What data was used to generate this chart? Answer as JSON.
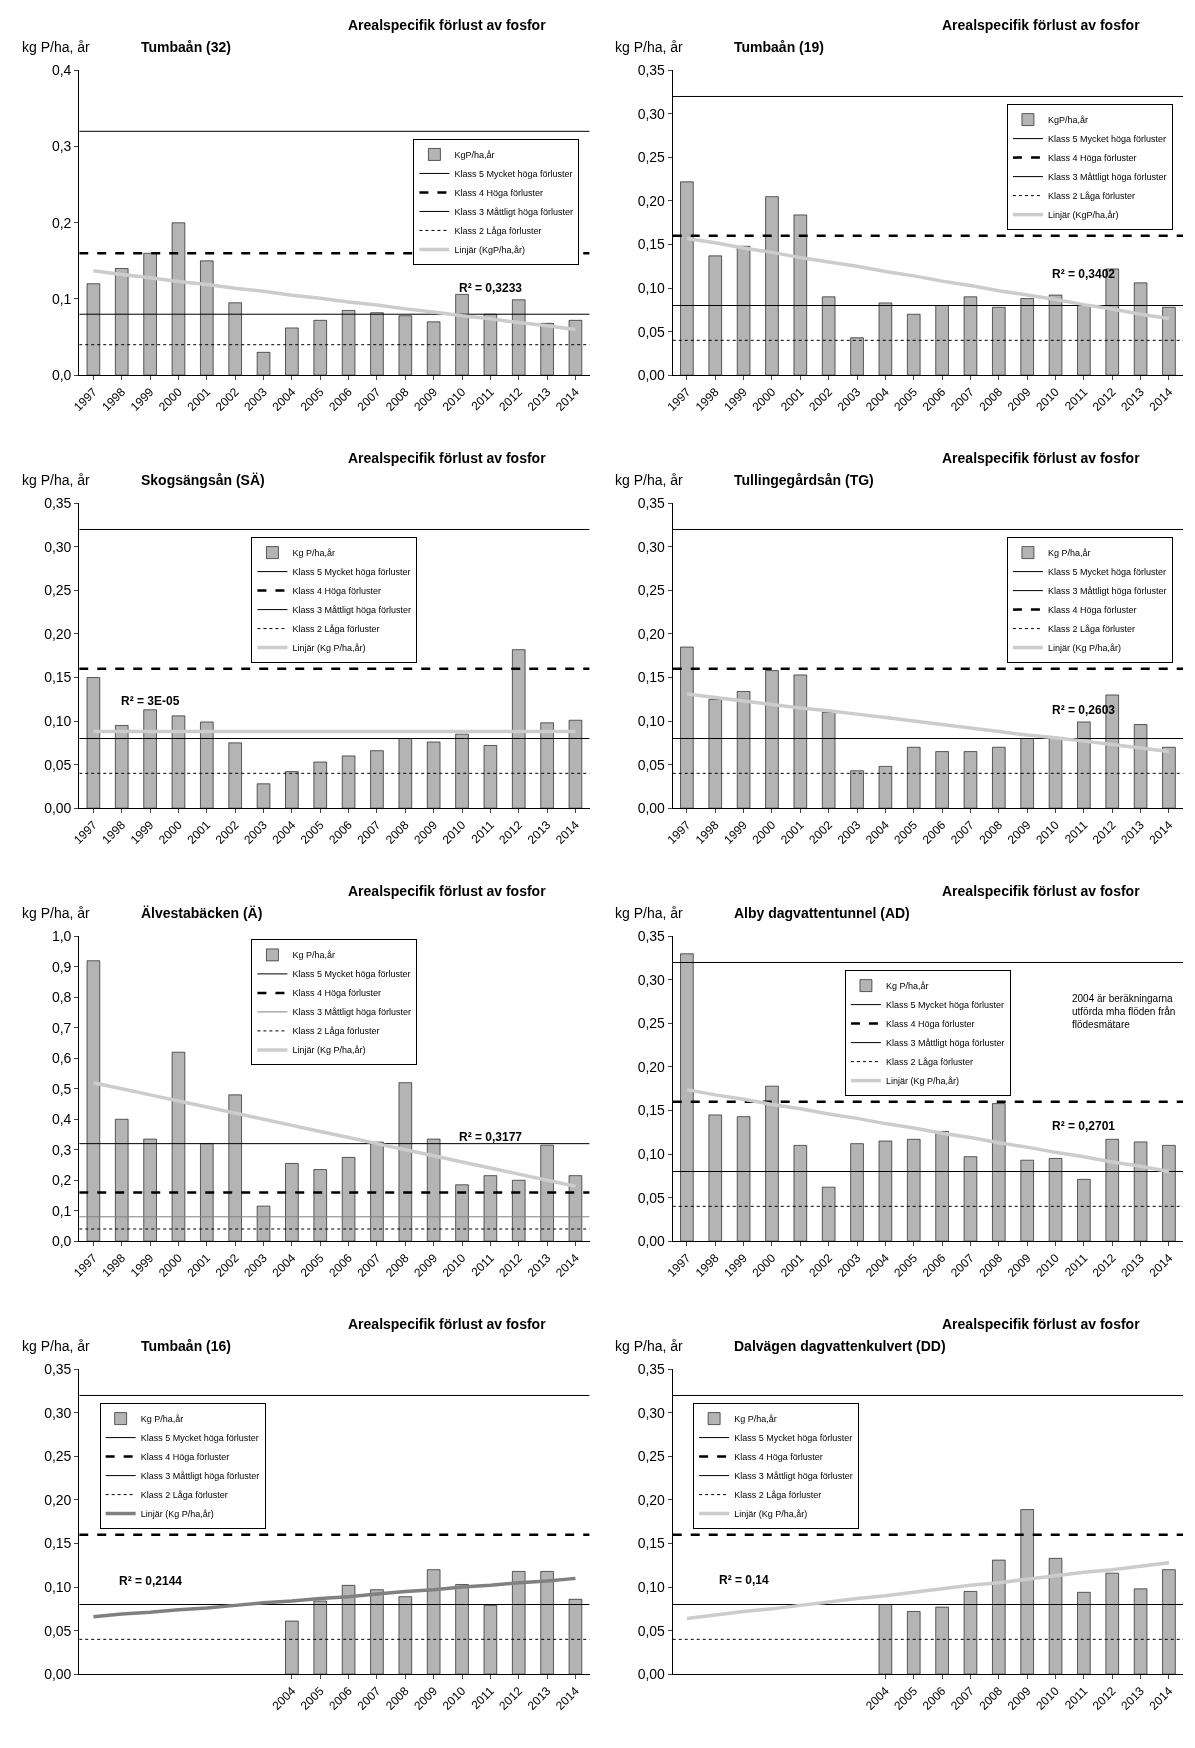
{
  "chart_data": [
    {
      "type": "bar",
      "title": "Arealspecifik förlust av fosfor",
      "subtitle": "Tumbaån (32)",
      "ylabel": "kg P/ha, år",
      "legend": "top right",
      "categories": [
        "1997",
        "1998",
        "1999",
        "2000",
        "2001",
        "2002",
        "2003",
        "2004",
        "2005",
        "2006",
        "2007",
        "2008",
        "2009",
        "2010",
        "2011",
        "2012",
        "2013",
        "2014"
      ],
      "ylim": [
        0,
        0.4
      ],
      "yticks": [
        {
          "value": 0,
          "label": "0,0"
        },
        {
          "value": 0.1,
          "label": "0,1"
        },
        {
          "value": 0.2,
          "label": "0,2"
        },
        {
          "value": 0.3,
          "label": "0,3"
        },
        {
          "value": 0.4,
          "label": "0,4"
        }
      ],
      "series": [
        {
          "name": "KgP/ha,år",
          "color": "#b4b4b4",
          "values": [
            0.12,
            0.14,
            0.16,
            0.2,
            0.15,
            0.095,
            0.03,
            0.062,
            0.072,
            0.085,
            0.082,
            0.078,
            0.07,
            0.106,
            0.08,
            0.099,
            0.068,
            0.072
          ]
        },
        {
          "type": "line",
          "name": "Linjär (KgP/ha,år)",
          "color": "#cccccc",
          "values": [
            0.137,
            0.132,
            0.128,
            0.123,
            0.119,
            0.114,
            0.11,
            0.105,
            0.101,
            0.096,
            0.092,
            0.087,
            0.083,
            0.078,
            0.074,
            0.069,
            0.065,
            0.06
          ]
        }
      ],
      "ref_lines": [
        {
          "axis": "y",
          "value": 0.32,
          "label": "Klass 5 Mycket höga förluster",
          "color": "#000000",
          "line_style": "solid"
        },
        {
          "axis": "y",
          "value": 0.16,
          "label": "Klass 4 Höga förluster",
          "color": "#000000",
          "line_style": "dashed"
        },
        {
          "axis": "y",
          "value": 0.08,
          "label": "Klass 3 Måttligt höga förluster",
          "color": "#000000",
          "line_style": "solid"
        },
        {
          "axis": "y",
          "value": 0.04,
          "label": "Klass 2 Låga förluster",
          "color": "#000000",
          "line_style": "dotted"
        }
      ],
      "annotations": [
        "R² = 0,3233"
      ]
    },
    {
      "type": "bar",
      "title": "Arealspecifik förlust av fosfor",
      "subtitle": "Tumbaån (19)",
      "ylabel": "kg P/ha, år",
      "legend": "top right",
      "categories": [
        "1997",
        "1998",
        "1999",
        "2000",
        "2001",
        "2002",
        "2003",
        "2004",
        "2005",
        "2006",
        "2007",
        "2008",
        "2009",
        "2010",
        "2011",
        "2012",
        "2013",
        "2014"
      ],
      "ylim": [
        0,
        0.35
      ],
      "yticks": [
        {
          "value": 0,
          "label": "0,00"
        },
        {
          "value": 0.05,
          "label": "0,05"
        },
        {
          "value": 0.1,
          "label": "0,10"
        },
        {
          "value": 0.15,
          "label": "0,15"
        },
        {
          "value": 0.2,
          "label": "0,20"
        },
        {
          "value": 0.25,
          "label": "0,25"
        },
        {
          "value": 0.3,
          "label": "0,30"
        },
        {
          "value": 0.35,
          "label": "0,35"
        }
      ],
      "series": [
        {
          "name": "KgP/ha,år",
          "color": "#b4b4b4",
          "values": [
            0.222,
            0.137,
            0.148,
            0.205,
            0.184,
            0.09,
            0.043,
            0.083,
            0.07,
            0.08,
            0.09,
            0.078,
            0.088,
            0.092,
            0.08,
            0.122,
            0.106,
            0.078
          ]
        },
        {
          "type": "line",
          "name": "Linjär (KgP/ha,år)",
          "color": "#cccccc",
          "values": [
            0.157,
            0.152,
            0.146,
            0.141,
            0.135,
            0.13,
            0.125,
            0.119,
            0.114,
            0.108,
            0.103,
            0.097,
            0.092,
            0.087,
            0.081,
            0.076,
            0.07,
            0.065
          ]
        }
      ],
      "ref_lines": [
        {
          "axis": "y",
          "value": 0.32,
          "label": "Klass 5 Mycket höga förluster",
          "color": "#000000",
          "line_style": "solid"
        },
        {
          "axis": "y",
          "value": 0.16,
          "label": "Klass 4 Höga förluster",
          "color": "#000000",
          "line_style": "dashed"
        },
        {
          "axis": "y",
          "value": 0.08,
          "label": "Klass 3 Måttligt höga förluster",
          "color": "#000000",
          "line_style": "solid"
        },
        {
          "axis": "y",
          "value": 0.04,
          "label": "Klass 2 Låga förluster",
          "color": "#000000",
          "line_style": "dotted"
        }
      ],
      "annotations": [
        "R² = 0,3402"
      ]
    },
    {
      "type": "bar",
      "title": "Arealspecifik förlust av fosfor",
      "subtitle": "Skogsängsån (SÄ)",
      "ylabel": "kg P/ha, år",
      "legend": "top",
      "categories": [
        "1997",
        "1998",
        "1999",
        "2000",
        "2001",
        "2002",
        "2003",
        "2004",
        "2005",
        "2006",
        "2007",
        "2008",
        "2009",
        "2010",
        "2011",
        "2012",
        "2013",
        "2014"
      ],
      "ylim": [
        0,
        0.35
      ],
      "yticks": [
        {
          "value": 0,
          "label": "0,00"
        },
        {
          "value": 0.05,
          "label": "0,05"
        },
        {
          "value": 0.1,
          "label": "0,10"
        },
        {
          "value": 0.15,
          "label": "0,15"
        },
        {
          "value": 0.2,
          "label": "0,20"
        },
        {
          "value": 0.25,
          "label": "0,25"
        },
        {
          "value": 0.3,
          "label": "0,30"
        },
        {
          "value": 0.35,
          "label": "0,35"
        }
      ],
      "series": [
        {
          "name": "Kg P/ha,år",
          "color": "#b4b4b4",
          "values": [
            0.15,
            0.095,
            0.113,
            0.106,
            0.099,
            0.075,
            0.028,
            0.042,
            0.053,
            0.06,
            0.066,
            0.08,
            0.076,
            0.085,
            0.072,
            0.182,
            0.098,
            0.101
          ]
        },
        {
          "type": "line",
          "name": "Linjär (Kg P/ha,år)",
          "color": "#cccccc",
          "values": [
            0.088,
            0.088,
            0.088,
            0.088,
            0.088,
            0.088,
            0.088,
            0.088,
            0.088,
            0.088,
            0.088,
            0.088,
            0.088,
            0.088,
            0.088,
            0.088,
            0.088,
            0.088
          ]
        }
      ],
      "ref_lines": [
        {
          "axis": "y",
          "value": 0.32,
          "label": "Klass 5 Mycket höga förluster",
          "color": "#000000",
          "line_style": "solid"
        },
        {
          "axis": "y",
          "value": 0.16,
          "label": "Klass 4 Höga förluster",
          "color": "#000000",
          "line_style": "dashed"
        },
        {
          "axis": "y",
          "value": 0.08,
          "label": "Klass 3 Måttligt höga förluster",
          "color": "#000000",
          "line_style": "solid"
        },
        {
          "axis": "y",
          "value": 0.04,
          "label": "Klass 2 Låga förluster",
          "color": "#000000",
          "line_style": "dotted"
        }
      ],
      "annotations": [
        "R² = 3E-05"
      ]
    },
    {
      "type": "bar",
      "title": "Arealspecifik förlust av fosfor",
      "subtitle": "Tullingegårdsån (TG)",
      "ylabel": "kg P/ha, år",
      "legend": "top right",
      "categories": [
        "1997",
        "1998",
        "1999",
        "2000",
        "2001",
        "2002",
        "2003",
        "2004",
        "2005",
        "2006",
        "2007",
        "2008",
        "2009",
        "2010",
        "2011",
        "2012",
        "2013",
        "2014"
      ],
      "ylim": [
        0,
        0.35
      ],
      "yticks": [
        {
          "value": 0,
          "label": "0,00"
        },
        {
          "value": 0.05,
          "label": "0,05"
        },
        {
          "value": 0.1,
          "label": "0,10"
        },
        {
          "value": 0.15,
          "label": "0,15"
        },
        {
          "value": 0.2,
          "label": "0,20"
        },
        {
          "value": 0.25,
          "label": "0,25"
        },
        {
          "value": 0.3,
          "label": "0,30"
        },
        {
          "value": 0.35,
          "label": "0,35"
        }
      ],
      "series": [
        {
          "name": "Kg P/ha,år",
          "color": "#b4b4b4",
          "values": [
            0.185,
            0.125,
            0.134,
            0.158,
            0.153,
            0.11,
            0.043,
            0.048,
            0.07,
            0.065,
            0.065,
            0.07,
            0.08,
            0.08,
            0.099,
            0.13,
            0.096,
            0.07
          ]
        },
        {
          "type": "line",
          "name": "Linjär (Kg P/ha,år)",
          "color": "#cccccc",
          "values": [
            0.131,
            0.127,
            0.123,
            0.119,
            0.115,
            0.112,
            0.108,
            0.104,
            0.1,
            0.096,
            0.092,
            0.088,
            0.084,
            0.081,
            0.077,
            0.073,
            0.069,
            0.065
          ]
        }
      ],
      "ref_lines": [
        {
          "axis": "y",
          "value": 0.32,
          "label": "Klass 5 Mycket höga förluster",
          "color": "#000000",
          "line_style": "solid"
        },
        {
          "axis": "y",
          "value": 0.08,
          "label": "Klass 3 Måttligt höga förluster",
          "color": "#000000",
          "line_style": "solid"
        },
        {
          "axis": "y",
          "value": 0.16,
          "label": "Klass 4 Höga förluster",
          "color": "#000000",
          "line_style": "dashed"
        },
        {
          "axis": "y",
          "value": 0.04,
          "label": "Klass 2 Låga förluster",
          "color": "#000000",
          "line_style": "dotted"
        }
      ],
      "annotations": [
        "R² = 0,2603"
      ]
    },
    {
      "type": "bar",
      "title": "Arealspecifik förlust av fosfor",
      "subtitle": "Älvestabäcken (Ä)",
      "ylabel": "kg P/ha, år",
      "legend": "top",
      "categories": [
        "1997",
        "1998",
        "1999",
        "2000",
        "2001",
        "2002",
        "2003",
        "2004",
        "2005",
        "2006",
        "2007",
        "2008",
        "2009",
        "2010",
        "2011",
        "2012",
        "2013",
        "2014"
      ],
      "ylim": [
        0,
        1.0
      ],
      "yticks": [
        {
          "value": 0,
          "label": "0,0"
        },
        {
          "value": 0.1,
          "label": "0,1"
        },
        {
          "value": 0.2,
          "label": "0,2"
        },
        {
          "value": 0.3,
          "label": "0,3"
        },
        {
          "value": 0.4,
          "label": "0,4"
        },
        {
          "value": 0.5,
          "label": "0,5"
        },
        {
          "value": 0.6,
          "label": "0,6"
        },
        {
          "value": 0.7,
          "label": "0,7"
        },
        {
          "value": 0.8,
          "label": "0,8"
        },
        {
          "value": 0.9,
          "label": "0,9"
        },
        {
          "value": 1.0,
          "label": "1,0"
        }
      ],
      "series": [
        {
          "name": "Kg P/ha,år",
          "color": "#b4b4b4",
          "values": [
            0.92,
            0.4,
            0.335,
            0.62,
            0.32,
            0.48,
            0.115,
            0.255,
            0.235,
            0.275,
            0.325,
            0.52,
            0.335,
            0.185,
            0.215,
            0.2,
            0.315,
            0.215
          ]
        },
        {
          "type": "line",
          "name": "Linjär (Kg P/ha,år)",
          "color": "#cccccc",
          "values": [
            0.52,
            0.5,
            0.48,
            0.46,
            0.44,
            0.42,
            0.4,
            0.38,
            0.36,
            0.34,
            0.32,
            0.3,
            0.28,
            0.26,
            0.24,
            0.22,
            0.2,
            0.18
          ]
        }
      ],
      "ref_lines": [
        {
          "axis": "y",
          "value": 0.32,
          "label": "Klass 5 Mycket höga förluster",
          "color": "#000000",
          "line_style": "solid"
        },
        {
          "axis": "y",
          "value": 0.16,
          "label": "Klass 4 Höga förluster",
          "color": "#000000",
          "line_style": "dashed"
        },
        {
          "axis": "y",
          "value": 0.08,
          "label": "Klass 3 Måttligt höga förluster",
          "color": "#808080",
          "line_style": "solid"
        },
        {
          "axis": "y",
          "value": 0.04,
          "label": "Klass 2 Låga förluster",
          "color": "#000000",
          "line_style": "dotted"
        }
      ],
      "annotations": [
        "R² = 0,3177"
      ]
    },
    {
      "type": "bar",
      "title": "Arealspecifik förlust av fosfor",
      "subtitle": "Alby dagvattentunnel (AD)",
      "ylabel": "kg P/ha, år",
      "legend": "top",
      "categories": [
        "1997",
        "1998",
        "1999",
        "2000",
        "2001",
        "2002",
        "2003",
        "2004",
        "2005",
        "2006",
        "2007",
        "2008",
        "2009",
        "2010",
        "2011",
        "2012",
        "2013",
        "2014"
      ],
      "ylim": [
        0,
        0.35
      ],
      "yticks": [
        {
          "value": 0,
          "label": "0,00"
        },
        {
          "value": 0.05,
          "label": "0,05"
        },
        {
          "value": 0.1,
          "label": "0,10"
        },
        {
          "value": 0.15,
          "label": "0,15"
        },
        {
          "value": 0.2,
          "label": "0,20"
        },
        {
          "value": 0.25,
          "label": "0,25"
        },
        {
          "value": 0.3,
          "label": "0,30"
        },
        {
          "value": 0.35,
          "label": "0,35"
        }
      ],
      "series": [
        {
          "name": "Kg P/ha,år",
          "color": "#b4b4b4",
          "values": [
            0.33,
            0.145,
            0.143,
            0.178,
            0.11,
            0.062,
            0.112,
            0.115,
            0.117,
            0.126,
            0.097,
            0.158,
            0.093,
            0.095,
            0.071,
            0.117,
            0.114,
            0.11
          ]
        },
        {
          "type": "line",
          "name": "Linjär (Kg P/ha,år)",
          "color": "#cccccc",
          "values": [
            0.174,
            0.168,
            0.163,
            0.157,
            0.152,
            0.146,
            0.141,
            0.135,
            0.13,
            0.124,
            0.119,
            0.113,
            0.108,
            0.102,
            0.097,
            0.091,
            0.086,
            0.08
          ]
        }
      ],
      "ref_lines": [
        {
          "axis": "y",
          "value": 0.32,
          "label": "Klass 5 Mycket höga förluster",
          "color": "#000000",
          "line_style": "solid"
        },
        {
          "axis": "y",
          "value": 0.16,
          "label": "Klass 4 Höga förluster",
          "color": "#000000",
          "line_style": "dashed"
        },
        {
          "axis": "y",
          "value": 0.08,
          "label": "Klass 3 Måttligt höga förluster",
          "color": "#000000",
          "line_style": "solid"
        },
        {
          "axis": "y",
          "value": 0.04,
          "label": "Klass 2 Låga förluster",
          "color": "#000000",
          "line_style": "dotted"
        }
      ],
      "annotations": [
        "R² = 0,2701",
        "2004 är beräkningarna utförda mha flöden från flödesmätare"
      ]
    },
    {
      "type": "bar",
      "title": "Arealspecifik förlust av fosfor",
      "subtitle": "Tumbaån (16)",
      "ylabel": "kg P/ha, år",
      "legend": "top left",
      "categories": [
        null,
        null,
        null,
        null,
        null,
        null,
        null,
        "2004",
        "2005",
        "2006",
        "2007",
        "2008",
        "2009",
        "2010",
        "2011",
        "2012",
        "2013",
        "2014"
      ],
      "ylim": [
        0,
        0.35
      ],
      "yticks": [
        {
          "value": 0,
          "label": "0,00"
        },
        {
          "value": 0.05,
          "label": "0,05"
        },
        {
          "value": 0.1,
          "label": "0,10"
        },
        {
          "value": 0.15,
          "label": "0,15"
        },
        {
          "value": 0.2,
          "label": "0,20"
        },
        {
          "value": 0.25,
          "label": "0,25"
        },
        {
          "value": 0.3,
          "label": "0,30"
        },
        {
          "value": 0.35,
          "label": "0,35"
        }
      ],
      "series": [
        {
          "name": "Kg P/ha,år",
          "color": "#b4b4b4",
          "values": [
            null,
            null,
            null,
            null,
            null,
            null,
            null,
            0.061,
            0.084,
            0.102,
            0.097,
            0.089,
            0.12,
            0.103,
            0.079,
            0.118,
            0.118,
            0.086
          ]
        },
        {
          "type": "line",
          "name": "Linjär (Kg P/ha,år)",
          "color": "#808080",
          "values": [
            0.066,
            0.069,
            0.071,
            0.074,
            0.076,
            0.079,
            0.082,
            0.084,
            0.087,
            0.089,
            0.092,
            0.095,
            0.097,
            0.1,
            0.102,
            0.105,
            0.107,
            0.11
          ]
        }
      ],
      "ref_lines": [
        {
          "axis": "y",
          "value": 0.32,
          "label": "Klass 5 Mycket höga förluster",
          "color": "#000000",
          "line_style": "solid"
        },
        {
          "axis": "y",
          "value": 0.16,
          "label": "Klass 4 Höga förluster",
          "color": "#000000",
          "line_style": "dashed"
        },
        {
          "axis": "y",
          "value": 0.08,
          "label": "Klass 3 Måttligt höga förluster",
          "color": "#000000",
          "line_style": "solid"
        },
        {
          "axis": "y",
          "value": 0.04,
          "label": "Klass 2 Låga förluster",
          "color": "#000000",
          "line_style": "dotted"
        }
      ],
      "annotations": [
        "R² = 0,2144"
      ]
    },
    {
      "type": "bar",
      "title": "Arealspecifik förlust av fosfor",
      "subtitle": "Dalvägen dagvattenkulvert (DD)",
      "ylabel": "kg P/ha, år",
      "legend": "top left",
      "categories": [
        null,
        null,
        null,
        null,
        null,
        null,
        null,
        "2004",
        "2005",
        "2006",
        "2007",
        "2008",
        "2009",
        "2010",
        "2011",
        "2012",
        "2013",
        "2014"
      ],
      "ylim": [
        0,
        0.35
      ],
      "yticks": [
        {
          "value": 0,
          "label": "0,00"
        },
        {
          "value": 0.05,
          "label": "0,05"
        },
        {
          "value": 0.1,
          "label": "0,10"
        },
        {
          "value": 0.15,
          "label": "0,15"
        },
        {
          "value": 0.2,
          "label": "0,20"
        },
        {
          "value": 0.25,
          "label": "0,25"
        },
        {
          "value": 0.3,
          "label": "0,30"
        },
        {
          "value": 0.35,
          "label": "0,35"
        }
      ],
      "series": [
        {
          "name": "Kg P/ha,år",
          "color": "#b4b4b4",
          "values": [
            null,
            null,
            null,
            null,
            null,
            null,
            null,
            0.08,
            0.072,
            0.077,
            0.095,
            0.131,
            0.189,
            0.133,
            0.094,
            0.116,
            0.098,
            0.12
          ]
        },
        {
          "type": "line",
          "name": "Linjär (Kg P/ha,år)",
          "color": "#cccccc",
          "values": [
            0.064,
            0.068,
            0.072,
            0.075,
            0.079,
            0.083,
            0.087,
            0.09,
            0.094,
            0.098,
            0.102,
            0.105,
            0.109,
            0.113,
            0.117,
            0.12,
            0.124,
            0.128
          ]
        }
      ],
      "ref_lines": [
        {
          "axis": "y",
          "value": 0.32,
          "label": "Klass 5 Mycket höga förluster",
          "color": "#000000",
          "line_style": "solid"
        },
        {
          "axis": "y",
          "value": 0.16,
          "label": "Klass 4 Höga förluster",
          "color": "#000000",
          "line_style": "dashed"
        },
        {
          "axis": "y",
          "value": 0.08,
          "label": "Klass 3 Måttligt höga förluster",
          "color": "#000000",
          "line_style": "solid"
        },
        {
          "axis": "y",
          "value": 0.04,
          "label": "Klass 2 Låga förluster",
          "color": "#000000",
          "line_style": "dotted"
        }
      ],
      "annotations": [
        "R² = 0,14"
      ]
    }
  ]
}
